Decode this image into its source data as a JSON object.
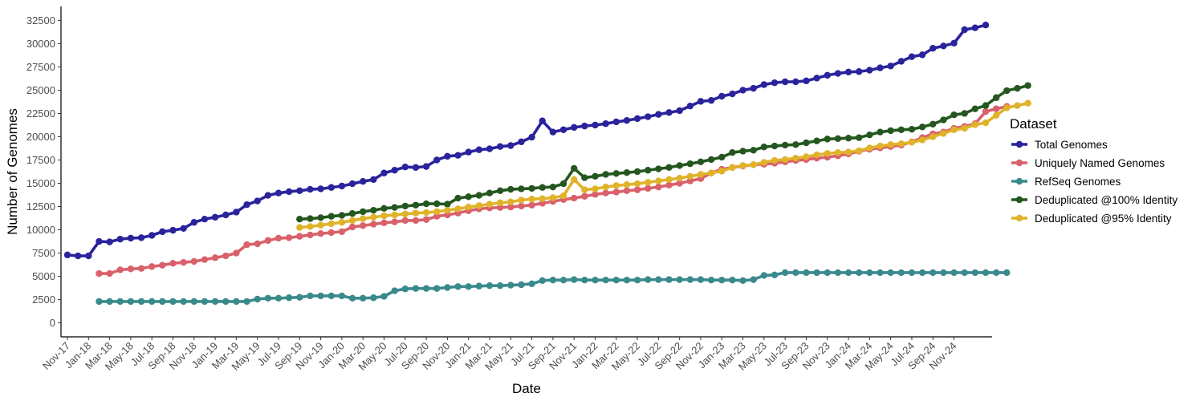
{
  "chart_data": {
    "type": "line",
    "title": "",
    "xlabel": "Date",
    "ylabel": "Number of Genomes",
    "ylim": [
      -1500,
      34000
    ],
    "yticks": [
      0,
      2500,
      5000,
      7500,
      10000,
      12500,
      15000,
      17500,
      20000,
      22500,
      25000,
      27500,
      30000,
      32500
    ],
    "grid": false,
    "legend": {
      "title": "Dataset",
      "position": "right"
    },
    "x_start": "Nov-17",
    "x_end": "Dec-24",
    "x_tick_labels": [
      "Nov-17",
      "Jan-18",
      "Mar-18",
      "May-18",
      "Jul-18",
      "Sep-18",
      "Nov-18",
      "Jan-19",
      "Mar-19",
      "May-19",
      "Jul-19",
      "Sep-19",
      "Nov-19",
      "Jan-20",
      "Mar-20",
      "May-20",
      "Jul-20",
      "Sep-20",
      "Nov-20",
      "Jan-21",
      "Mar-21",
      "May-21",
      "Jul-21",
      "Sep-21",
      "Nov-21",
      "Jan-22",
      "Mar-22",
      "May-22",
      "Jul-22",
      "Sep-22",
      "Nov-22",
      "Jan-23",
      "Mar-23",
      "May-23",
      "Jul-23",
      "Sep-23",
      "Nov-23",
      "Jan-24",
      "Mar-24",
      "May-24",
      "Jul-24",
      "Sep-24",
      "Nov-24"
    ],
    "series": [
      {
        "name": "Total Genomes",
        "color": "#2a239c",
        "start_index": 0,
        "values": [
          7300,
          7200,
          7200,
          8750,
          8700,
          9000,
          9100,
          9150,
          9400,
          9800,
          9950,
          10150,
          10800,
          11150,
          11350,
          11600,
          11900,
          12700,
          13100,
          13700,
          13950,
          14100,
          14200,
          14350,
          14400,
          14550,
          14700,
          14950,
          15200,
          15400,
          16100,
          16400,
          16750,
          16700,
          16800,
          17500,
          17900,
          18000,
          18350,
          18600,
          18700,
          18950,
          19050,
          19450,
          19950,
          21700,
          20500,
          20750,
          21000,
          21150,
          21250,
          21400,
          21600,
          21750,
          21950,
          22150,
          22400,
          22600,
          22800,
          23300,
          23800,
          23900,
          24350,
          24600,
          25000,
          25200,
          25600,
          25800,
          25900,
          25900,
          26000,
          26300,
          26600,
          26800,
          26950,
          27000,
          27150,
          27400,
          27600,
          28100,
          28600,
          28800,
          29500,
          29750,
          30050,
          31500,
          31700,
          32000
        ]
      },
      {
        "name": "Uniquely Named Genomes",
        "color": "#d9616b",
        "start_index": 3,
        "values": [
          5300,
          5300,
          5700,
          5800,
          5850,
          6050,
          6200,
          6400,
          6500,
          6600,
          6800,
          7000,
          7200,
          7500,
          8400,
          8500,
          8850,
          9100,
          9150,
          9300,
          9450,
          9600,
          9700,
          9800,
          10300,
          10450,
          10600,
          10750,
          10850,
          11000,
          11000,
          11100,
          11450,
          11600,
          11800,
          12050,
          12250,
          12350,
          12400,
          12450,
          12550,
          12650,
          12850,
          13050,
          13250,
          13400,
          13600,
          13800,
          13950,
          14050,
          14200,
          14300,
          14450,
          14600,
          14800,
          15000,
          15250,
          15500,
          16100,
          16500,
          16700,
          16850,
          17000,
          17050,
          17150,
          17300,
          17450,
          17550,
          17700,
          17800,
          17950,
          18150,
          18450,
          18650,
          18800,
          18950,
          19100,
          19450,
          19900,
          20300,
          20500,
          20900,
          21100,
          21400,
          22700,
          23000,
          23250
        ]
      },
      {
        "name": "RefSeq Genomes",
        "color": "#3a8a8c",
        "start_index": 3,
        "values": [
          2300,
          2300,
          2300,
          2300,
          2300,
          2300,
          2300,
          2300,
          2300,
          2300,
          2300,
          2300,
          2300,
          2300,
          2300,
          2550,
          2650,
          2650,
          2700,
          2750,
          2900,
          2900,
          2900,
          2900,
          2650,
          2650,
          2700,
          2850,
          3450,
          3650,
          3700,
          3700,
          3700,
          3800,
          3900,
          3900,
          3950,
          4000,
          4000,
          4050,
          4100,
          4200,
          4550,
          4600,
          4600,
          4650,
          4600,
          4600,
          4600,
          4600,
          4600,
          4600,
          4650,
          4650,
          4650,
          4650,
          4650,
          4650,
          4600,
          4600,
          4600,
          4550,
          4650,
          5100,
          5150,
          5400,
          5400,
          5400,
          5400,
          5400,
          5400,
          5400,
          5400,
          5400,
          5400,
          5400,
          5400,
          5400,
          5400,
          5400,
          5400,
          5400,
          5400,
          5400,
          5400,
          5400,
          5400
        ]
      },
      {
        "name": "Deduplicated @100% Identity",
        "color": "#24571f",
        "start_index": 22,
        "values": [
          11150,
          11200,
          11300,
          11450,
          11550,
          11750,
          11950,
          12100,
          12300,
          12400,
          12550,
          12650,
          12800,
          12800,
          12750,
          13400,
          13550,
          13700,
          13950,
          14200,
          14350,
          14400,
          14450,
          14550,
          14600,
          14950,
          16600,
          15600,
          15750,
          15950,
          16050,
          16150,
          16250,
          16400,
          16550,
          16700,
          16900,
          17100,
          17300,
          17550,
          17800,
          18300,
          18450,
          18550,
          18900,
          19000,
          19100,
          19150,
          19350,
          19550,
          19750,
          19800,
          19850,
          19900,
          20200,
          20500,
          20650,
          20750,
          20800,
          21050,
          21350,
          21800,
          22350,
          22500,
          23000,
          23350,
          24200,
          24950,
          25200,
          25500
        ]
      },
      {
        "name": "Deduplicated @95% Identity",
        "color": "#e0b32a",
        "start_index": 22,
        "values": [
          10250,
          10350,
          10500,
          10650,
          10800,
          11000,
          11200,
          11350,
          11500,
          11600,
          11700,
          11800,
          11850,
          11950,
          12100,
          12250,
          12450,
          12600,
          12750,
          12900,
          13000,
          13200,
          13300,
          13350,
          13450,
          13650,
          15400,
          14300,
          14400,
          14600,
          14750,
          14850,
          14950,
          15100,
          15250,
          15400,
          15550,
          15750,
          15950,
          16100,
          16300,
          16700,
          16900,
          17000,
          17250,
          17450,
          17550,
          17700,
          17850,
          18050,
          18200,
          18300,
          18350,
          18500,
          18800,
          19000,
          19150,
          19250,
          19400,
          19650,
          20000,
          20350,
          20750,
          20900,
          21300,
          21500,
          22300,
          23100,
          23350,
          23600
        ]
      }
    ]
  }
}
